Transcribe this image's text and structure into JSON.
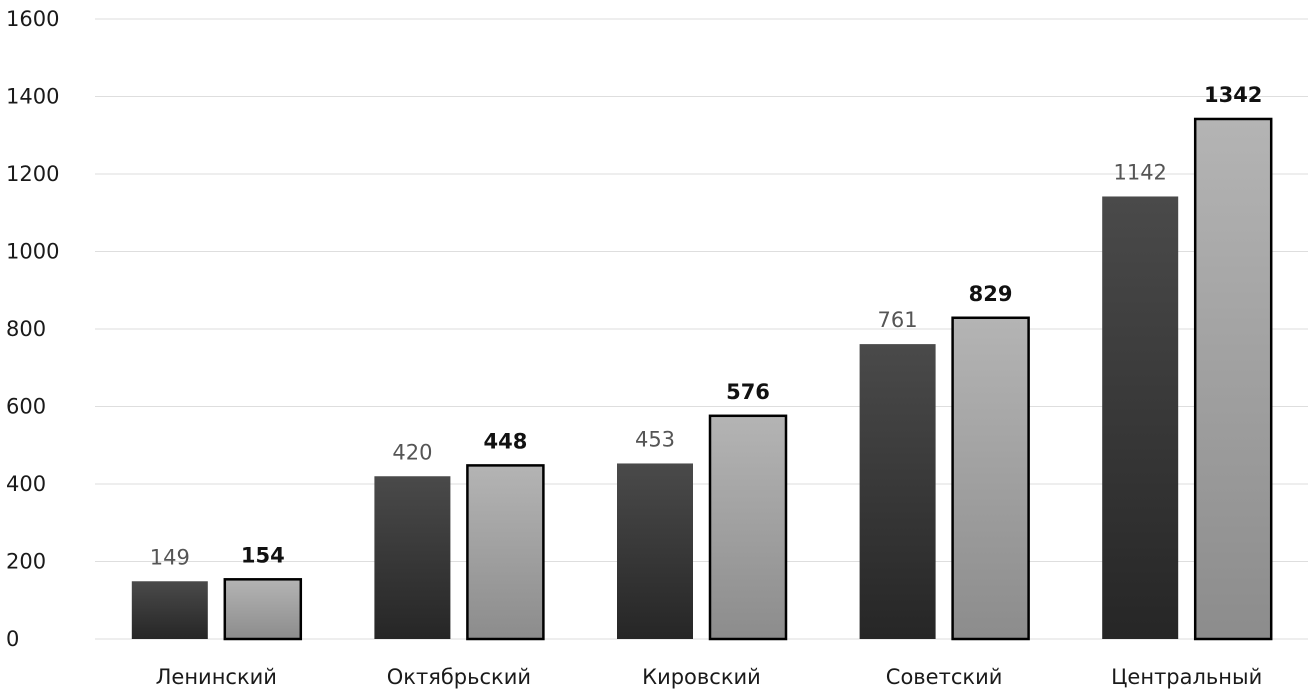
{
  "chart_data": {
    "type": "bar",
    "categories": [
      "Ленинский",
      "Октябрьский",
      "Кировский",
      "Советский",
      "Центральный"
    ],
    "series": [
      {
        "values": [
          149,
          420,
          453,
          761,
          1142
        ],
        "color": "#3a3a3a"
      },
      {
        "values": [
          154,
          448,
          576,
          829,
          1342
        ],
        "color": "#a8a8a8",
        "outline": "#000000"
      }
    ],
    "yticks": [
      "0",
      "200",
      "400",
      "600",
      "800",
      "1000",
      "1200",
      "1400",
      "1600"
    ],
    "ylim": [
      0,
      1600
    ],
    "grid": true,
    "legend": "none",
    "title": "",
    "xlabel": "",
    "ylabel": ""
  }
}
